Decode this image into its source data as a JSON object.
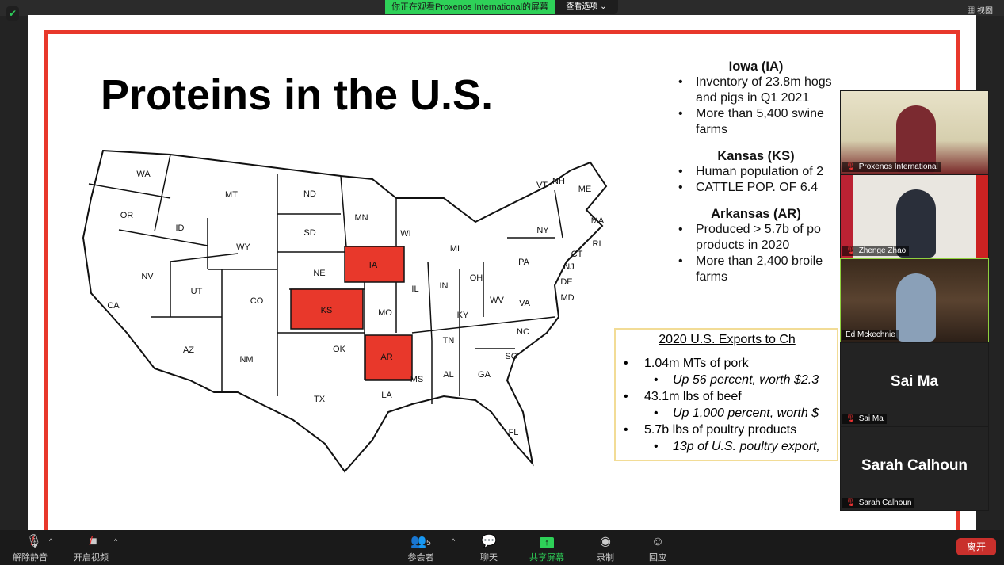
{
  "top": {
    "banner": "你正在观看Proxenos  International的屏幕",
    "view_options": "查看选项 ⌄",
    "view": "视图"
  },
  "slide": {
    "title": "Proteins in the U.S.",
    "map": {
      "highlight_color": "#e8382b",
      "highlighted": [
        "IA",
        "KS",
        "AR"
      ],
      "states": [
        [
          "WA",
          181,
          219
        ],
        [
          "OR",
          160,
          271
        ],
        [
          "ID",
          227,
          287
        ],
        [
          "MT",
          292,
          245
        ],
        [
          "WY",
          307,
          311
        ],
        [
          "ND",
          391,
          244
        ],
        [
          "SD",
          391,
          293
        ],
        [
          "NE",
          403,
          344
        ],
        [
          "MN",
          456,
          274
        ],
        [
          "IA",
          471,
          334
        ],
        [
          "WI",
          512,
          294
        ],
        [
          "MI",
          574,
          313
        ],
        [
          "IL",
          524,
          364
        ],
        [
          "IN",
          560,
          360
        ],
        [
          "OH",
          601,
          350
        ],
        [
          "PA",
          661,
          330
        ],
        [
          "NY",
          685,
          290
        ],
        [
          "VT",
          684,
          233
        ],
        [
          "NH",
          705,
          228
        ],
        [
          "ME",
          738,
          238
        ],
        [
          "MA",
          754,
          278
        ],
        [
          "RI",
          751,
          309
        ],
        [
          "CT",
          736,
          318
        ],
        [
          "NJ",
          718,
          336
        ],
        [
          "DE",
          715,
          355
        ],
        [
          "MD",
          716,
          375
        ],
        [
          "VA",
          662,
          382
        ],
        [
          "WV",
          627,
          378
        ],
        [
          "KY",
          584,
          397
        ],
        [
          "TN",
          566,
          429
        ],
        [
          "NC",
          660,
          418
        ],
        [
          "SC",
          645,
          449
        ],
        [
          "GA",
          611,
          472
        ],
        [
          "AL",
          566,
          472
        ],
        [
          "MS",
          526,
          478
        ],
        [
          "FL",
          648,
          545
        ],
        [
          "LA",
          488,
          498
        ],
        [
          "AR",
          488,
          450
        ],
        [
          "MO",
          486,
          394
        ],
        [
          "KS",
          412,
          391
        ],
        [
          "OK",
          428,
          440
        ],
        [
          "TX",
          403,
          503
        ],
        [
          "NM",
          311,
          453
        ],
        [
          "AZ",
          238,
          441
        ],
        [
          "CO",
          324,
          379
        ],
        [
          "UT",
          248,
          367
        ],
        [
          "NV",
          186,
          348
        ],
        [
          "CA",
          143,
          385
        ]
      ]
    },
    "sections": [
      {
        "heading": "Iowa (IA)",
        "bullets": [
          "Inventory of 23.8m hogs and pigs in Q1 2021",
          "More than 5,400 swine farms"
        ]
      },
      {
        "heading": "Kansas (KS)",
        "bullets": [
          "Human population of 2",
          "CATTLE POP. OF 6.4"
        ]
      },
      {
        "heading": "Arkansas (AR)",
        "bullets": [
          "Produced > 5.7b of po products in 2020",
          "More than 2,400 broile farms"
        ]
      }
    ],
    "exports": {
      "heading": "2020 U.S. Exports to Ch",
      "items": [
        {
          "main": "1.04m MTs of pork",
          "sub": "Up 56 percent, worth $2.3"
        },
        {
          "main": "43.1m lbs of beef",
          "sub": "Up 1,000 percent, worth $"
        },
        {
          "main": "5.7b lbs of poultry products",
          "sub": "13p of U.S. poultry export,"
        }
      ]
    }
  },
  "participants": [
    {
      "name": "Proxenos International",
      "video": true
    },
    {
      "name": "Zhenge Zhao",
      "video": true
    },
    {
      "name": "Ed Mckechnie",
      "video": true,
      "active": true
    },
    {
      "name": "Sai Ma",
      "video": false
    },
    {
      "name": "Sarah Calhoun",
      "video": false
    }
  ],
  "toolbar": {
    "unmute": "解除静音",
    "start_video": "开启视频",
    "participants": "参会者",
    "participants_count": "5",
    "chat": "聊天",
    "share": "共享屏幕",
    "record": "录制",
    "reactions": "回应",
    "leave": "离开"
  }
}
